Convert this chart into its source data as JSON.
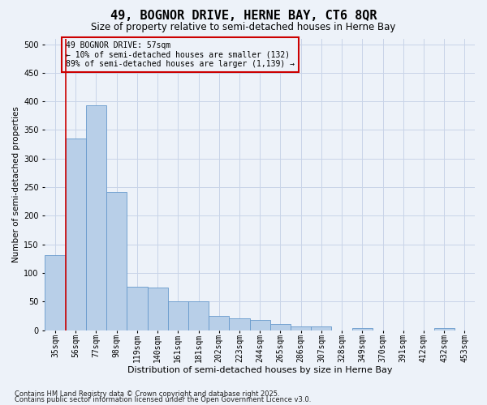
{
  "title": "49, BOGNOR DRIVE, HERNE BAY, CT6 8QR",
  "subtitle": "Size of property relative to semi-detached houses in Herne Bay",
  "xlabel": "Distribution of semi-detached houses by size in Herne Bay",
  "ylabel": "Number of semi-detached properties",
  "categories": [
    "35sqm",
    "56sqm",
    "77sqm",
    "98sqm",
    "119sqm",
    "140sqm",
    "161sqm",
    "181sqm",
    "202sqm",
    "223sqm",
    "244sqm",
    "265sqm",
    "286sqm",
    "307sqm",
    "328sqm",
    "349sqm",
    "370sqm",
    "391sqm",
    "412sqm",
    "432sqm",
    "453sqm"
  ],
  "values": [
    131,
    335,
    393,
    242,
    76,
    75,
    51,
    51,
    25,
    20,
    18,
    10,
    6,
    6,
    0,
    4,
    0,
    0,
    0,
    4,
    0
  ],
  "bar_color": "#b8cfe8",
  "bar_edge_color": "#6699cc",
  "grid_color": "#c8d4e8",
  "bg_color": "#edf2f9",
  "annotation_box_color": "#cc0000",
  "property_line_color": "#cc0000",
  "pct_smaller": 10,
  "num_smaller": 132,
  "pct_larger": 89,
  "num_larger": 1139,
  "footer1": "Contains HM Land Registry data © Crown copyright and database right 2025.",
  "footer2": "Contains public sector information licensed under the Open Government Licence v3.0.",
  "ylim": [
    0,
    510
  ],
  "yticks": [
    0,
    50,
    100,
    150,
    200,
    250,
    300,
    350,
    400,
    450,
    500
  ],
  "title_fontsize": 11,
  "subtitle_fontsize": 8.5,
  "xlabel_fontsize": 8,
  "ylabel_fontsize": 7.5,
  "tick_fontsize": 7,
  "annot_fontsize": 7,
  "footer_fontsize": 6
}
